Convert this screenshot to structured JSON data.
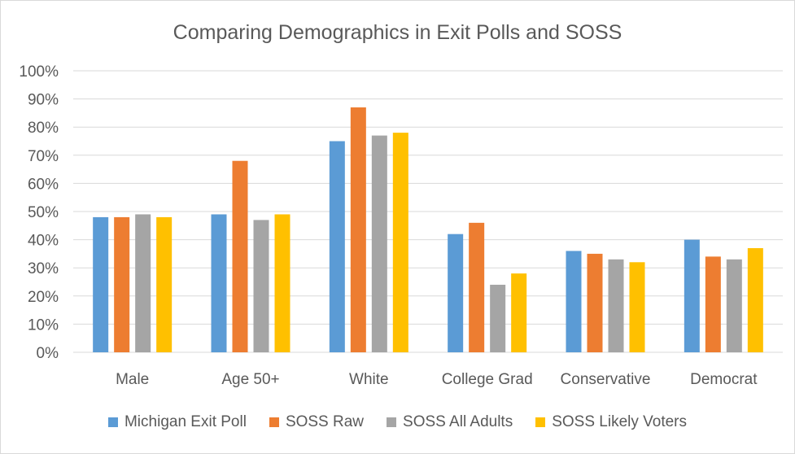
{
  "chart_data": {
    "type": "bar",
    "title": "Comparing Demographics in Exit Polls and SOSS",
    "categories": [
      "Male",
      "Age 50+",
      "White",
      "College Grad",
      "Conservative",
      "Democrat"
    ],
    "series": [
      {
        "name": "Michigan Exit Poll",
        "color": "#5b9bd5",
        "values": [
          48,
          49,
          75,
          42,
          36,
          40
        ]
      },
      {
        "name": "SOSS Raw",
        "color": "#ed7d31",
        "values": [
          48,
          68,
          87,
          46,
          35,
          34
        ]
      },
      {
        "name": "SOSS All Adults",
        "color": "#a5a5a5",
        "values": [
          49,
          47,
          77,
          24,
          33,
          33
        ]
      },
      {
        "name": "SOSS Likely Voters",
        "color": "#ffc000",
        "values": [
          48,
          49,
          78,
          28,
          32,
          37
        ]
      }
    ],
    "ylim": [
      0,
      100
    ],
    "yticks": [
      "0%",
      "10%",
      "20%",
      "30%",
      "40%",
      "50%",
      "60%",
      "70%",
      "80%",
      "90%",
      "100%"
    ],
    "grid": true,
    "legend_position": "bottom"
  }
}
